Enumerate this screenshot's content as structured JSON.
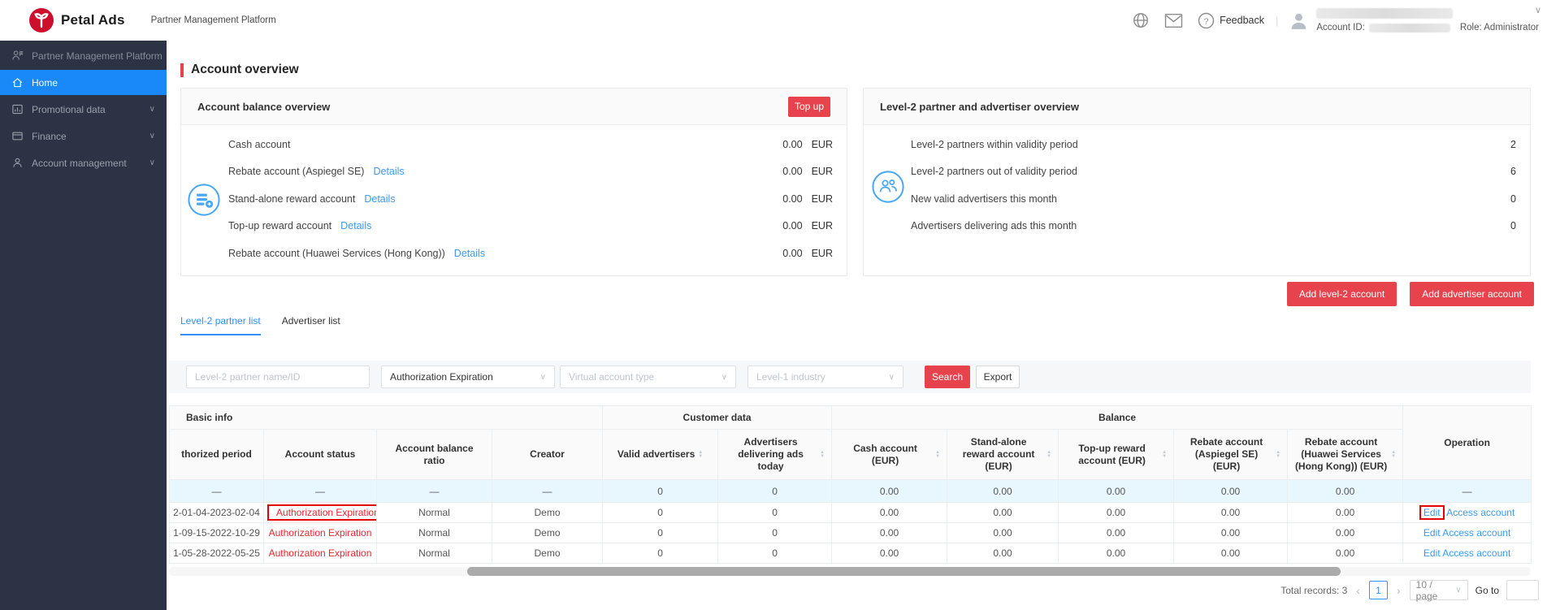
{
  "topbar": {
    "brand": "Petal Ads",
    "subtitle": "Partner Management Platform",
    "feedback": "Feedback",
    "divider": "|",
    "account_id_label": "Account ID:",
    "role": "Role: Administrator"
  },
  "sidebar": {
    "items": [
      {
        "label": "Partner Management Platform",
        "icon": "partner-icon",
        "active": false,
        "chevron": false
      },
      {
        "label": "Home",
        "icon": "home-icon",
        "active": true,
        "chevron": false
      },
      {
        "label": "Promotional data",
        "icon": "chart-icon",
        "active": false,
        "chevron": true
      },
      {
        "label": "Finance",
        "icon": "finance-icon",
        "active": false,
        "chevron": true
      },
      {
        "label": "Account management",
        "icon": "account-icon",
        "active": false,
        "chevron": true
      }
    ]
  },
  "page_title": "Account overview",
  "balance_card": {
    "title": "Account balance overview",
    "top_up": "Top up",
    "details": "Details",
    "rows": [
      {
        "label": "Cash account",
        "has_details": false,
        "value": "0.00",
        "currency": "EUR"
      },
      {
        "label": "Rebate account (Aspiegel SE)",
        "has_details": true,
        "value": "0.00",
        "currency": "EUR"
      },
      {
        "label": "Stand-alone reward account",
        "has_details": true,
        "value": "0.00",
        "currency": "EUR"
      },
      {
        "label": "Top-up reward account",
        "has_details": true,
        "value": "0.00",
        "currency": "EUR"
      },
      {
        "label": "Rebate account (Huawei Services (Hong Kong))",
        "has_details": true,
        "value": "0.00",
        "currency": "EUR"
      }
    ]
  },
  "overview_card": {
    "title": "Level-2 partner and advertiser overview",
    "rows": [
      {
        "label": "Level-2 partners within validity period",
        "value": "2"
      },
      {
        "label": "Level-2 partners out of validity period",
        "value": "6"
      },
      {
        "label": "New valid advertisers this month",
        "value": "0"
      },
      {
        "label": "Advertisers delivering ads this month",
        "value": "0"
      }
    ]
  },
  "action_buttons": {
    "add_level2": "Add level-2 account",
    "add_advertiser": "Add advertiser account"
  },
  "tabs": [
    {
      "label": "Level-2 partner list",
      "active": true
    },
    {
      "label": "Advertiser list",
      "active": false
    }
  ],
  "filters": {
    "partner_placeholder": "Level-2 partner name/ID",
    "auth_value": "Authorization Expiration",
    "virtual_placeholder": "Virtual account type",
    "industry_placeholder": "Level-1 industry",
    "search": "Search",
    "export": "Export"
  },
  "table": {
    "groups": [
      {
        "label": "Basic info",
        "span": 4
      },
      {
        "label": "Customer data",
        "span": 2
      },
      {
        "label": "Balance",
        "span": 5
      }
    ],
    "operation_header": "Operation",
    "columns": [
      {
        "label": "thorized period",
        "sortable": false
      },
      {
        "label": "Account status",
        "sortable": false
      },
      {
        "label": "Account balance ratio",
        "sortable": false
      },
      {
        "label": "Creator",
        "sortable": false
      },
      {
        "label": "Valid advertisers",
        "sortable": true
      },
      {
        "label": "Advertisers delivering ads today",
        "sortable": true
      },
      {
        "label": "Cash account (EUR)",
        "sortable": true
      },
      {
        "label": "Stand-alone reward account (EUR)",
        "sortable": true
      },
      {
        "label": "Top-up reward account (EUR)",
        "sortable": true
      },
      {
        "label": "Rebate account (Aspiegel SE) (EUR)",
        "sortable": true
      },
      {
        "label": "Rebate account (Huawei Services (Hong Kong)) (EUR)",
        "sortable": true
      }
    ],
    "summary_row": {
      "cells": [
        "—",
        "—",
        "—",
        "—",
        "0",
        "0",
        "0.00",
        "0.00",
        "0.00",
        "0.00",
        "0.00"
      ],
      "operation": "—"
    },
    "rows": [
      {
        "cells": [
          "2-01-04-2023-02-04",
          "Authorization Expiration",
          "Normal",
          "Demo",
          "0",
          "0",
          "0.00",
          "0.00",
          "0.00",
          "0.00",
          "0.00"
        ],
        "operation": {
          "edit": "Edit",
          "access": "Access account"
        },
        "annotate_status": true,
        "annotate_edit": true
      },
      {
        "cells": [
          "1-09-15-2022-10-29",
          "Authorization Expiration",
          "Normal",
          "Demo",
          "0",
          "0",
          "0.00",
          "0.00",
          "0.00",
          "0.00",
          "0.00"
        ],
        "operation": {
          "edit": "Edit",
          "access": "Access account"
        },
        "annotate_status": false,
        "annotate_edit": false
      },
      {
        "cells": [
          "1-05-28-2022-05-25",
          "Authorization Expiration",
          "Normal",
          "Demo",
          "0",
          "0",
          "0.00",
          "0.00",
          "0.00",
          "0.00",
          "0.00"
        ],
        "operation": {
          "edit": "Edit",
          "access": "Access account"
        },
        "annotate_status": false,
        "annotate_edit": false
      }
    ]
  },
  "pagination": {
    "total": "Total records: 3",
    "page": "1",
    "page_size": "10 / page",
    "goto": "Go to"
  },
  "colors": {
    "accent_red": "#e7434c",
    "accent_blue": "#3a8ef8",
    "status_red": "#f5222d",
    "annotation_red": "#e60000",
    "sidebar_active": "#1989fa",
    "summary_row_bg": "#e8f7fe"
  }
}
